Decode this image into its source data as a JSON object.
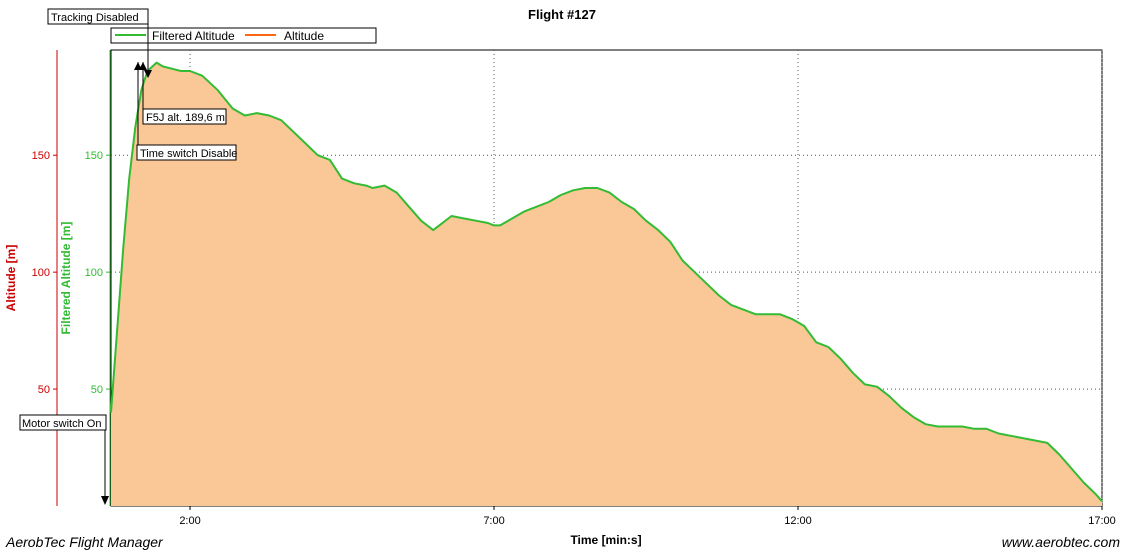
{
  "chart_data": {
    "type": "area",
    "title": "Flight #127",
    "xlabel": "Time [min:s]",
    "ylabel_left": "Altitude [m]",
    "ylabel_right": "Filtered Altitude [m]",
    "xlim": [
      0.7,
      17.0
    ],
    "ylim": [
      0,
      195
    ],
    "x_ticks": [
      {
        "v": 2,
        "label": "2:00"
      },
      {
        "v": 7,
        "label": "7:00"
      },
      {
        "v": 12,
        "label": "12:00"
      },
      {
        "v": 17,
        "label": "17:00"
      }
    ],
    "y_ticks_left": [
      {
        "v": 50,
        "label": "50"
      },
      {
        "v": 100,
        "label": "100"
      },
      {
        "v": 150,
        "label": "150"
      }
    ],
    "y_ticks_right": [
      {
        "v": 50,
        "label": "50"
      },
      {
        "v": 100,
        "label": "100"
      },
      {
        "v": 150,
        "label": "150"
      }
    ],
    "grid": true,
    "legend_position": "top-left",
    "series": [
      {
        "name": "Filtered Altitude",
        "color": "#33bb33",
        "style": "line"
      },
      {
        "name": "Altitude",
        "color": "#ff6611",
        "fill": "#fac896",
        "style": "area"
      }
    ],
    "x": [
      0.7,
      0.8,
      0.9,
      1.0,
      1.1,
      1.2,
      1.3,
      1.45,
      1.55,
      1.7,
      1.85,
      2.0,
      2.2,
      2.45,
      2.7,
      2.9,
      3.1,
      3.3,
      3.5,
      3.7,
      3.9,
      4.1,
      4.3,
      4.5,
      4.7,
      4.9,
      5.0,
      5.2,
      5.4,
      5.6,
      5.8,
      6.0,
      6.1,
      6.3,
      6.5,
      6.7,
      6.9,
      7.0,
      7.1,
      7.3,
      7.5,
      7.7,
      7.9,
      8.1,
      8.3,
      8.5,
      8.7,
      8.9,
      9.1,
      9.3,
      9.5,
      9.7,
      9.9,
      10.1,
      10.3,
      10.5,
      10.7,
      10.9,
      11.1,
      11.3,
      11.5,
      11.7,
      11.9,
      12.1,
      12.3,
      12.5,
      12.7,
      12.9,
      13.1,
      13.3,
      13.5,
      13.7,
      13.9,
      14.1,
      14.3,
      14.5,
      14.7,
      14.9,
      15.1,
      15.3,
      15.5,
      15.7,
      15.9,
      16.1,
      16.3,
      16.5,
      16.7,
      16.9,
      17.0
    ],
    "values": [
      40,
      75,
      110,
      140,
      162,
      178,
      186,
      189.6,
      188,
      187,
      186,
      186,
      184,
      178,
      170,
      167,
      168,
      167,
      165,
      160,
      155,
      150,
      148,
      140,
      138,
      137,
      136,
      137,
      134,
      128,
      122,
      118,
      120,
      124,
      123,
      122,
      121,
      120,
      120,
      123,
      126,
      128,
      130,
      133,
      135,
      136,
      136,
      134,
      130,
      127,
      122,
      118,
      113,
      105,
      100,
      95,
      90,
      86,
      84,
      82,
      82,
      82,
      80,
      77,
      70,
      68,
      63,
      57,
      52,
      51,
      47,
      42,
      38,
      35,
      34,
      34,
      34,
      33,
      33,
      31,
      30,
      29,
      28,
      27,
      22,
      16,
      10,
      5,
      2
    ],
    "annotations": [
      {
        "text": "Tracking Disabled",
        "x": 1.5
      },
      {
        "text": "F5J alt. 189,6 m",
        "x": 1.55
      },
      {
        "text": "Time switch Disable",
        "x": 1.45
      },
      {
        "text": "Motor switch On",
        "x": 0.62
      }
    ]
  },
  "footer": {
    "left": "AerobTec Flight Manager",
    "right": "www.aerobtec.com"
  },
  "colors": {
    "left_axis": "#cc0000",
    "right_axis": "#33bb33",
    "grid": "#555555"
  }
}
